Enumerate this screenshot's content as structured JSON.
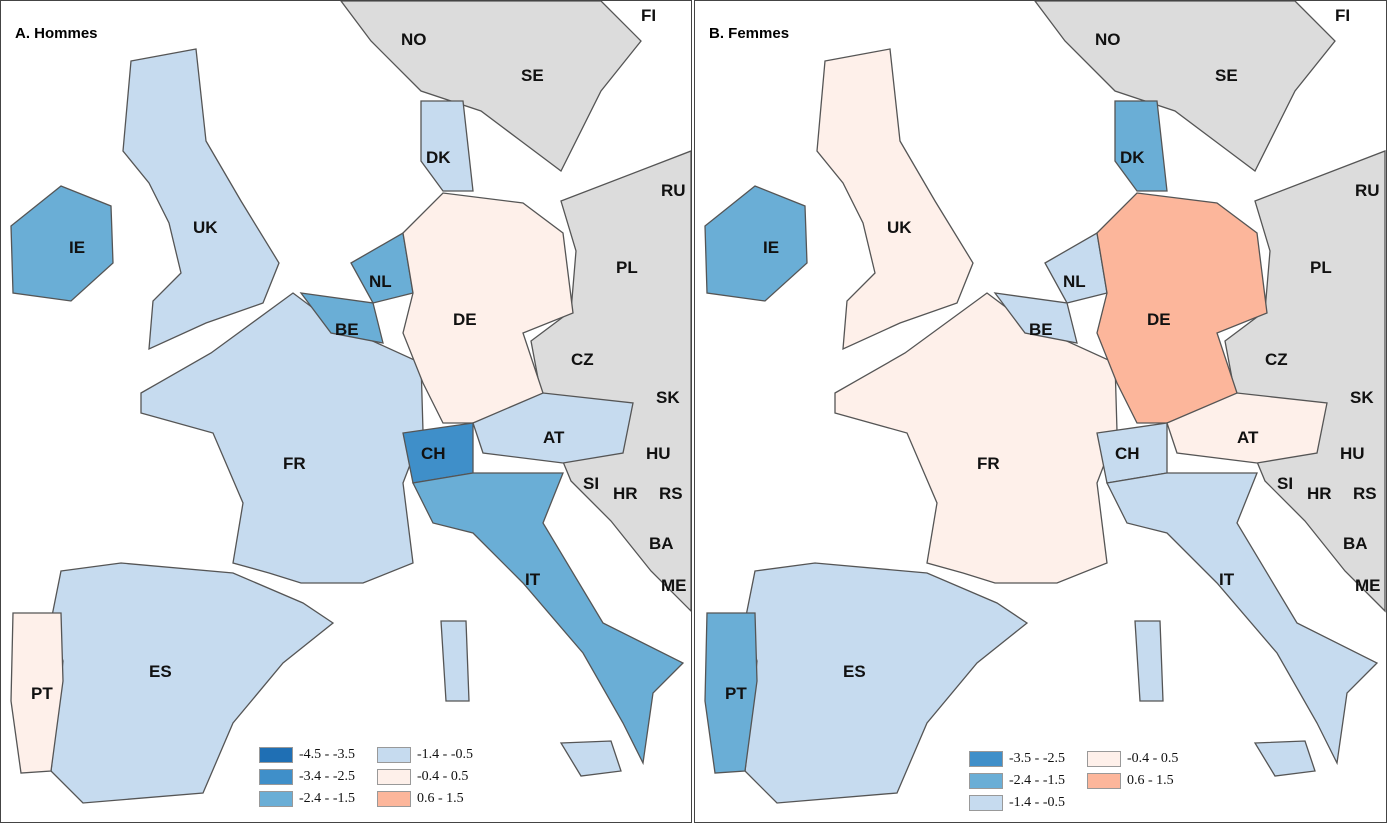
{
  "classes": {
    "c1": "#1f6fb4",
    "c2": "#3f8fc9",
    "c3": "#6aaed6",
    "c4": "#c6dbef",
    "c5": "#fef0ea",
    "c6": "#fcb69b",
    "gray": "#dcdcdc"
  },
  "panels": [
    {
      "title": "A. Hommes",
      "legend": [
        {
          "label": "-4.5 - -3.5",
          "color": "#1f6fb4"
        },
        {
          "label": "-3.4 - -2.5",
          "color": "#3f8fc9"
        },
        {
          "label": "-2.4 - -1.5",
          "color": "#6aaed6"
        },
        {
          "label": "-1.4 - -0.5",
          "color": "#c6dbef"
        },
        {
          "label": "-0.4 - 0.5",
          "color": "#fef0ea"
        },
        {
          "label": "0.6 - 1.5",
          "color": "#fcb69b"
        }
      ],
      "fills": {
        "IE": "c3",
        "UK": "c4",
        "FR": "c4",
        "BE": "c3",
        "NL": "c3",
        "DE": "c5",
        "DK": "c4",
        "CH": "c2",
        "AT": "c4",
        "IT": "c3",
        "ES": "c4",
        "PT": "c5",
        "SIC": "c4",
        "SAR": "c4"
      }
    },
    {
      "title": "B. Femmes",
      "legend": [
        {
          "label": "-3.5 - -2.5",
          "color": "#3f8fc9"
        },
        {
          "label": "-2.4 - -1.5",
          "color": "#6aaed6"
        },
        {
          "label": "-1.4 - -0.5",
          "color": "#c6dbef"
        },
        {
          "label": "-0.4 - 0.5",
          "color": "#fef0ea"
        },
        {
          "label": "0.6 - 1.5",
          "color": "#fcb69b"
        }
      ],
      "fills": {
        "IE": "c3",
        "UK": "c5",
        "FR": "c5",
        "BE": "c4",
        "NL": "c4",
        "DE": "c6",
        "DK": "c3",
        "CH": "c4",
        "AT": "c5",
        "IT": "c4",
        "ES": "c4",
        "PT": "c3",
        "SIC": "c4",
        "SAR": "c4"
      }
    }
  ],
  "country_labels": {
    "NO": "NO",
    "SE": "SE",
    "FI": "FI",
    "RU": "RU",
    "PL": "PL",
    "CZ": "CZ",
    "SK": "SK",
    "HU": "HU",
    "HR": "HR",
    "RS": "RS",
    "BA": "BA",
    "ME": "ME",
    "SI": "SI",
    "DK": "DK",
    "UK": "UK",
    "IE": "IE",
    "NL": "NL",
    "BE": "BE",
    "DE": "DE",
    "FR": "FR",
    "CH": "CH",
    "AT": "AT",
    "IT": "IT",
    "ES": "ES",
    "PT": "PT"
  }
}
